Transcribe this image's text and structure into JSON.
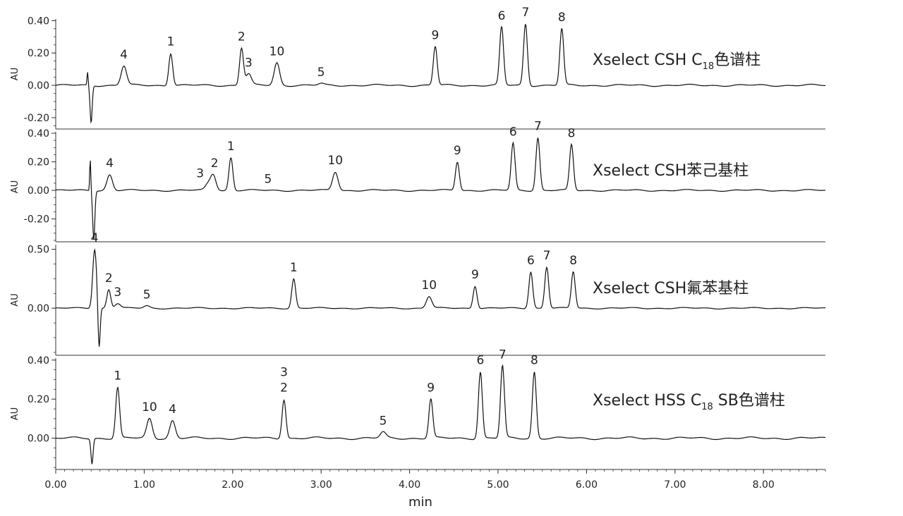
{
  "chart_data": {
    "type": "line",
    "xlabel": "min",
    "xlim": [
      0,
      8.7
    ],
    "x_ticks": [
      "0.00",
      "1.00",
      "2.00",
      "3.00",
      "4.00",
      "5.00",
      "6.00",
      "7.00",
      "8.00"
    ],
    "panels": [
      {
        "column_label": "Xselect CSH C",
        "subscript": "18",
        "column_suffix": "色谱柱",
        "ylabel": "AU",
        "ylim": [
          -0.27,
          0.41
        ],
        "y_ticks": [
          {
            "value": 0.4,
            "label": "0.40"
          },
          {
            "value": 0.2,
            "label": "0.20"
          },
          {
            "value": 0.0,
            "label": "0.00"
          },
          {
            "value": -0.2,
            "label": "-0.20"
          }
        ],
        "peaks": [
          {
            "label": "4",
            "rt": 0.77,
            "height": 0.12
          },
          {
            "label": "1",
            "rt": 1.3,
            "height": 0.2
          },
          {
            "label": "2",
            "rt": 2.1,
            "height": 0.23
          },
          {
            "label": "3",
            "rt": 2.18,
            "height": 0.07
          },
          {
            "label": "10",
            "rt": 2.5,
            "height": 0.14
          },
          {
            "label": "5",
            "rt": 3.0,
            "height": 0.01
          },
          {
            "label": "9",
            "rt": 4.29,
            "height": 0.24
          },
          {
            "label": "6",
            "rt": 5.04,
            "height": 0.36
          },
          {
            "label": "7",
            "rt": 5.31,
            "height": 0.38
          },
          {
            "label": "8",
            "rt": 5.72,
            "height": 0.35
          }
        ],
        "disturbance": {
          "rt": 0.4,
          "up": 0.08,
          "down": -0.23
        }
      },
      {
        "column_label": "Xselect CSH苯己基柱",
        "subscript": "",
        "column_suffix": "",
        "ylabel": "AU",
        "ylim": [
          -0.36,
          0.41
        ],
        "y_ticks": [
          {
            "value": 0.4,
            "label": "0.40"
          },
          {
            "value": 0.2,
            "label": "0.20"
          },
          {
            "value": 0.0,
            "label": "0.00"
          },
          {
            "value": -0.2,
            "label": "-0.20"
          }
        ],
        "peaks": [
          {
            "label": "4",
            "rt": 0.61,
            "height": 0.11
          },
          {
            "label": "3",
            "rt": 1.72,
            "height": 0.04
          },
          {
            "label": "2",
            "rt": 1.78,
            "height": 0.11
          },
          {
            "label": "1",
            "rt": 1.98,
            "height": 0.23
          },
          {
            "label": "5",
            "rt": 2.4,
            "height": 0.0
          },
          {
            "label": "10",
            "rt": 3.16,
            "height": 0.13
          },
          {
            "label": "9",
            "rt": 4.54,
            "height": 0.2
          },
          {
            "label": "6",
            "rt": 5.17,
            "height": 0.33
          },
          {
            "label": "7",
            "rt": 5.45,
            "height": 0.37
          },
          {
            "label": "8",
            "rt": 5.83,
            "height": 0.32
          }
        ],
        "disturbance": {
          "rt": 0.43,
          "up": 0.22,
          "down": -0.34
        }
      },
      {
        "column_label": "Xselect CSH氟苯基柱",
        "subscript": "",
        "column_suffix": "",
        "ylabel": "AU",
        "ylim": [
          -0.4,
          0.54
        ],
        "y_ticks": [
          {
            "value": 0.5,
            "label": "0.50"
          },
          {
            "value": 0.0,
            "label": "0.00"
          }
        ],
        "peaks": [
          {
            "label": "4",
            "rt": 0.44,
            "height": 0.5
          },
          {
            "label": "2",
            "rt": 0.6,
            "height": 0.16
          },
          {
            "label": "3",
            "rt": 0.7,
            "height": 0.04
          },
          {
            "label": "5",
            "rt": 1.03,
            "height": 0.02
          },
          {
            "label": "1",
            "rt": 2.69,
            "height": 0.25
          },
          {
            "label": "10",
            "rt": 4.22,
            "height": 0.1
          },
          {
            "label": "9",
            "rt": 4.74,
            "height": 0.19
          },
          {
            "label": "6",
            "rt": 5.37,
            "height": 0.31
          },
          {
            "label": "7",
            "rt": 5.55,
            "height": 0.35
          },
          {
            "label": "8",
            "rt": 5.85,
            "height": 0.31
          }
        ],
        "disturbance": {
          "rt": 0.49,
          "up": 0.0,
          "down": -0.36
        }
      },
      {
        "column_label": "Xselect HSS C",
        "subscript": "18",
        "column_suffix": " SB色谱柱",
        "ylabel": "AU",
        "ylim": [
          -0.16,
          0.41
        ],
        "y_ticks": [
          {
            "value": 0.4,
            "label": "0.40"
          },
          {
            "value": 0.2,
            "label": "0.20"
          },
          {
            "value": 0.0,
            "label": "0.00"
          }
        ],
        "peaks": [
          {
            "label": "1",
            "rt": 0.7,
            "height": 0.26
          },
          {
            "label": "10",
            "rt": 1.06,
            "height": 0.1
          },
          {
            "label": "4",
            "rt": 1.32,
            "height": 0.09
          },
          {
            "label": "3\n2",
            "rt": 2.58,
            "height": 0.2
          },
          {
            "label": "5",
            "rt": 3.7,
            "height": 0.03
          },
          {
            "label": "9",
            "rt": 4.24,
            "height": 0.2
          },
          {
            "label": "6",
            "rt": 4.8,
            "height": 0.34
          },
          {
            "label": "7",
            "rt": 5.05,
            "height": 0.37
          },
          {
            "label": "8",
            "rt": 5.41,
            "height": 0.34
          }
        ],
        "disturbance": {
          "rt": 0.41,
          "up": 0.0,
          "down": -0.13
        }
      }
    ]
  }
}
